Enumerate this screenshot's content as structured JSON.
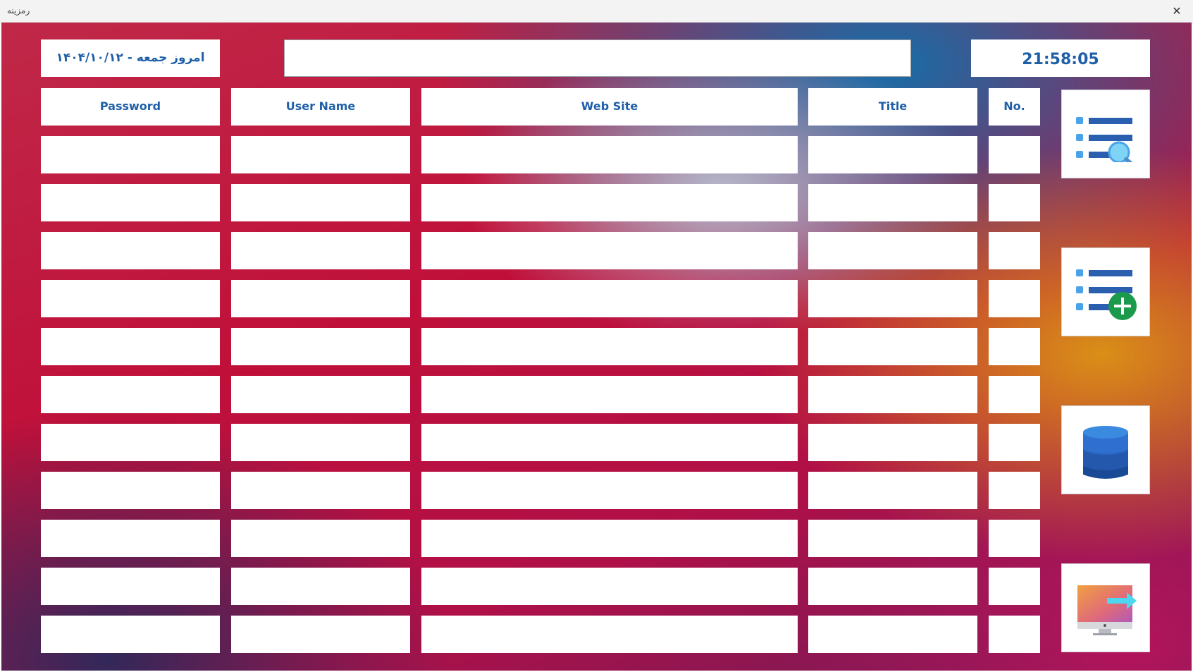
{
  "window": {
    "title": "رمزینه",
    "close_icon": "close-icon"
  },
  "header": {
    "date_text": "امروز جمعه - ۱۴۰۴/۱۰/۱۲",
    "search_value": "",
    "clock": "21:58:05"
  },
  "table": {
    "columns": [
      {
        "key": "password",
        "label": "Password"
      },
      {
        "key": "username",
        "label": "User Name"
      },
      {
        "key": "website",
        "label": "Web Site"
      },
      {
        "key": "title",
        "label": "Title"
      },
      {
        "key": "no",
        "label": "No."
      }
    ],
    "rows": [
      [
        "",
        "",
        "",
        "",
        ""
      ],
      [
        "",
        "",
        "",
        "",
        ""
      ],
      [
        "",
        "",
        "",
        "",
        ""
      ],
      [
        "",
        "",
        "",
        "",
        ""
      ],
      [
        "",
        "",
        "",
        "",
        ""
      ],
      [
        "",
        "",
        "",
        "",
        ""
      ],
      [
        "",
        "",
        "",
        "",
        ""
      ],
      [
        "",
        "",
        "",
        "",
        ""
      ],
      [
        "",
        "",
        "",
        "",
        ""
      ],
      [
        "",
        "",
        "",
        "",
        ""
      ],
      [
        "",
        "",
        "",
        "",
        ""
      ]
    ]
  },
  "actions": [
    {
      "name": "search-list-button",
      "icon": "list-search-icon"
    },
    {
      "name": "add-entry-button",
      "icon": "list-add-icon"
    },
    {
      "name": "database-button",
      "icon": "database-icon"
    },
    {
      "name": "exit-button",
      "icon": "monitor-exit-icon"
    }
  ],
  "colors": {
    "header_text": "#1f5fa8",
    "icon_blue": "#2a6fc4",
    "icon_light_blue": "#4aa3e8",
    "add_green": "#1b9a4b"
  }
}
